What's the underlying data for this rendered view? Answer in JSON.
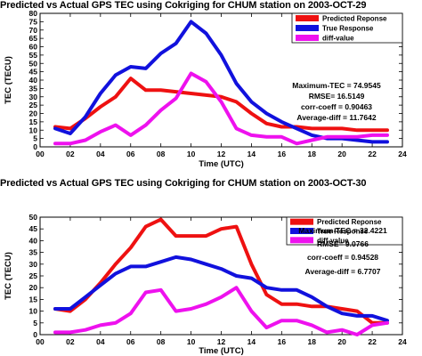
{
  "chart_data": [
    {
      "type": "line",
      "title": "Predicted vs Actual GPS TEC using Cokriging for CHUM station on 2003-OCT-29",
      "xlabel": "Time (UTC)",
      "ylabel": "TEC (TECU)",
      "xlim": [
        0,
        24
      ],
      "ylim": [
        0,
        80
      ],
      "xticks": [
        "00",
        "02",
        "04",
        "06",
        "08",
        "10",
        "12",
        "14",
        "16",
        "18",
        "20",
        "22",
        "24"
      ],
      "yticks": [
        "0",
        "5",
        "10",
        "15",
        "20",
        "25",
        "30",
        "35",
        "40",
        "45",
        "50",
        "55",
        "60",
        "65",
        "70",
        "75",
        "80"
      ],
      "x": [
        1,
        2,
        3,
        4,
        5,
        6,
        7,
        8,
        9,
        10,
        11,
        12,
        13,
        14,
        15,
        16,
        17,
        18,
        19,
        20,
        21,
        22,
        23
      ],
      "series": [
        {
          "name": "Predicted Reponse",
          "color": "#ee1111",
          "values": [
            12,
            11,
            17,
            24,
            30,
            41,
            34,
            34,
            33,
            32,
            31,
            30,
            27,
            20,
            14,
            12,
            12,
            11,
            11,
            11,
            10,
            10,
            10
          ]
        },
        {
          "name": "True Response",
          "color": "#1111dd",
          "values": [
            11,
            8,
            18,
            32,
            43,
            48,
            47,
            56,
            62,
            75,
            68,
            55,
            38,
            27,
            20,
            15,
            11,
            7,
            5,
            5,
            4,
            3,
            3
          ]
        },
        {
          "name": "diff-value",
          "color": "#ee11ee",
          "values": [
            2,
            2,
            4,
            9,
            13,
            7,
            13,
            22,
            29,
            44,
            39,
            27,
            11,
            7,
            6,
            6,
            2,
            4,
            6,
            6,
            6,
            7,
            7
          ]
        }
      ],
      "legend_position": "top-right",
      "annotations": [
        "Maximum-TEC = 74.9545",
        "RMSE= 16.5149",
        "corr-coeff = 0.90463",
        "Average-diff = 11.7642"
      ]
    },
    {
      "type": "line",
      "title": "Predicted vs Actual GPS TEC using Cokriging for CHUM station on 2003-OCT-30",
      "xlabel": "Time (UTC)",
      "ylabel": "TEC (TECU)",
      "xlim": [
        0,
        24
      ],
      "ylim": [
        0,
        50
      ],
      "xticks": [
        "00",
        "02",
        "04",
        "06",
        "08",
        "10",
        "12",
        "14",
        "16",
        "18",
        "20",
        "22",
        "24"
      ],
      "yticks": [
        "0",
        "5",
        "10",
        "15",
        "20",
        "25",
        "30",
        "35",
        "40",
        "45",
        "50"
      ],
      "x": [
        1,
        2,
        3,
        4,
        5,
        6,
        7,
        8,
        9,
        10,
        11,
        12,
        13,
        14,
        15,
        16,
        17,
        18,
        19,
        20,
        21,
        22,
        23
      ],
      "series": [
        {
          "name": "Predicted Reponse",
          "color": "#ee1111",
          "values": [
            11,
            10,
            15,
            22,
            30,
            37,
            46,
            49,
            42,
            42,
            42,
            45,
            46,
            30,
            17,
            13,
            13,
            12,
            12,
            11,
            10,
            5,
            5
          ]
        },
        {
          "name": "True Response",
          "color": "#1111dd",
          "values": [
            11,
            11,
            16,
            21,
            26,
            29,
            29,
            31,
            33,
            32,
            30,
            28,
            25,
            24,
            20,
            19,
            19,
            16,
            12,
            9,
            8,
            8,
            6
          ]
        },
        {
          "name": "diff-value",
          "color": "#ee11ee",
          "values": [
            1,
            1,
            2,
            4,
            5,
            9,
            18,
            19,
            10,
            11,
            13,
            16,
            20,
            10,
            3,
            6,
            6,
            4,
            1,
            2,
            0,
            4,
            5
          ]
        }
      ],
      "legend_position": "top-right",
      "annotations": [
        "Maximum-TEC = 32.4221",
        "RMSE= 9.0766",
        "corr-coeff = 0.94528",
        "Average-diff = 6.7707"
      ]
    }
  ]
}
